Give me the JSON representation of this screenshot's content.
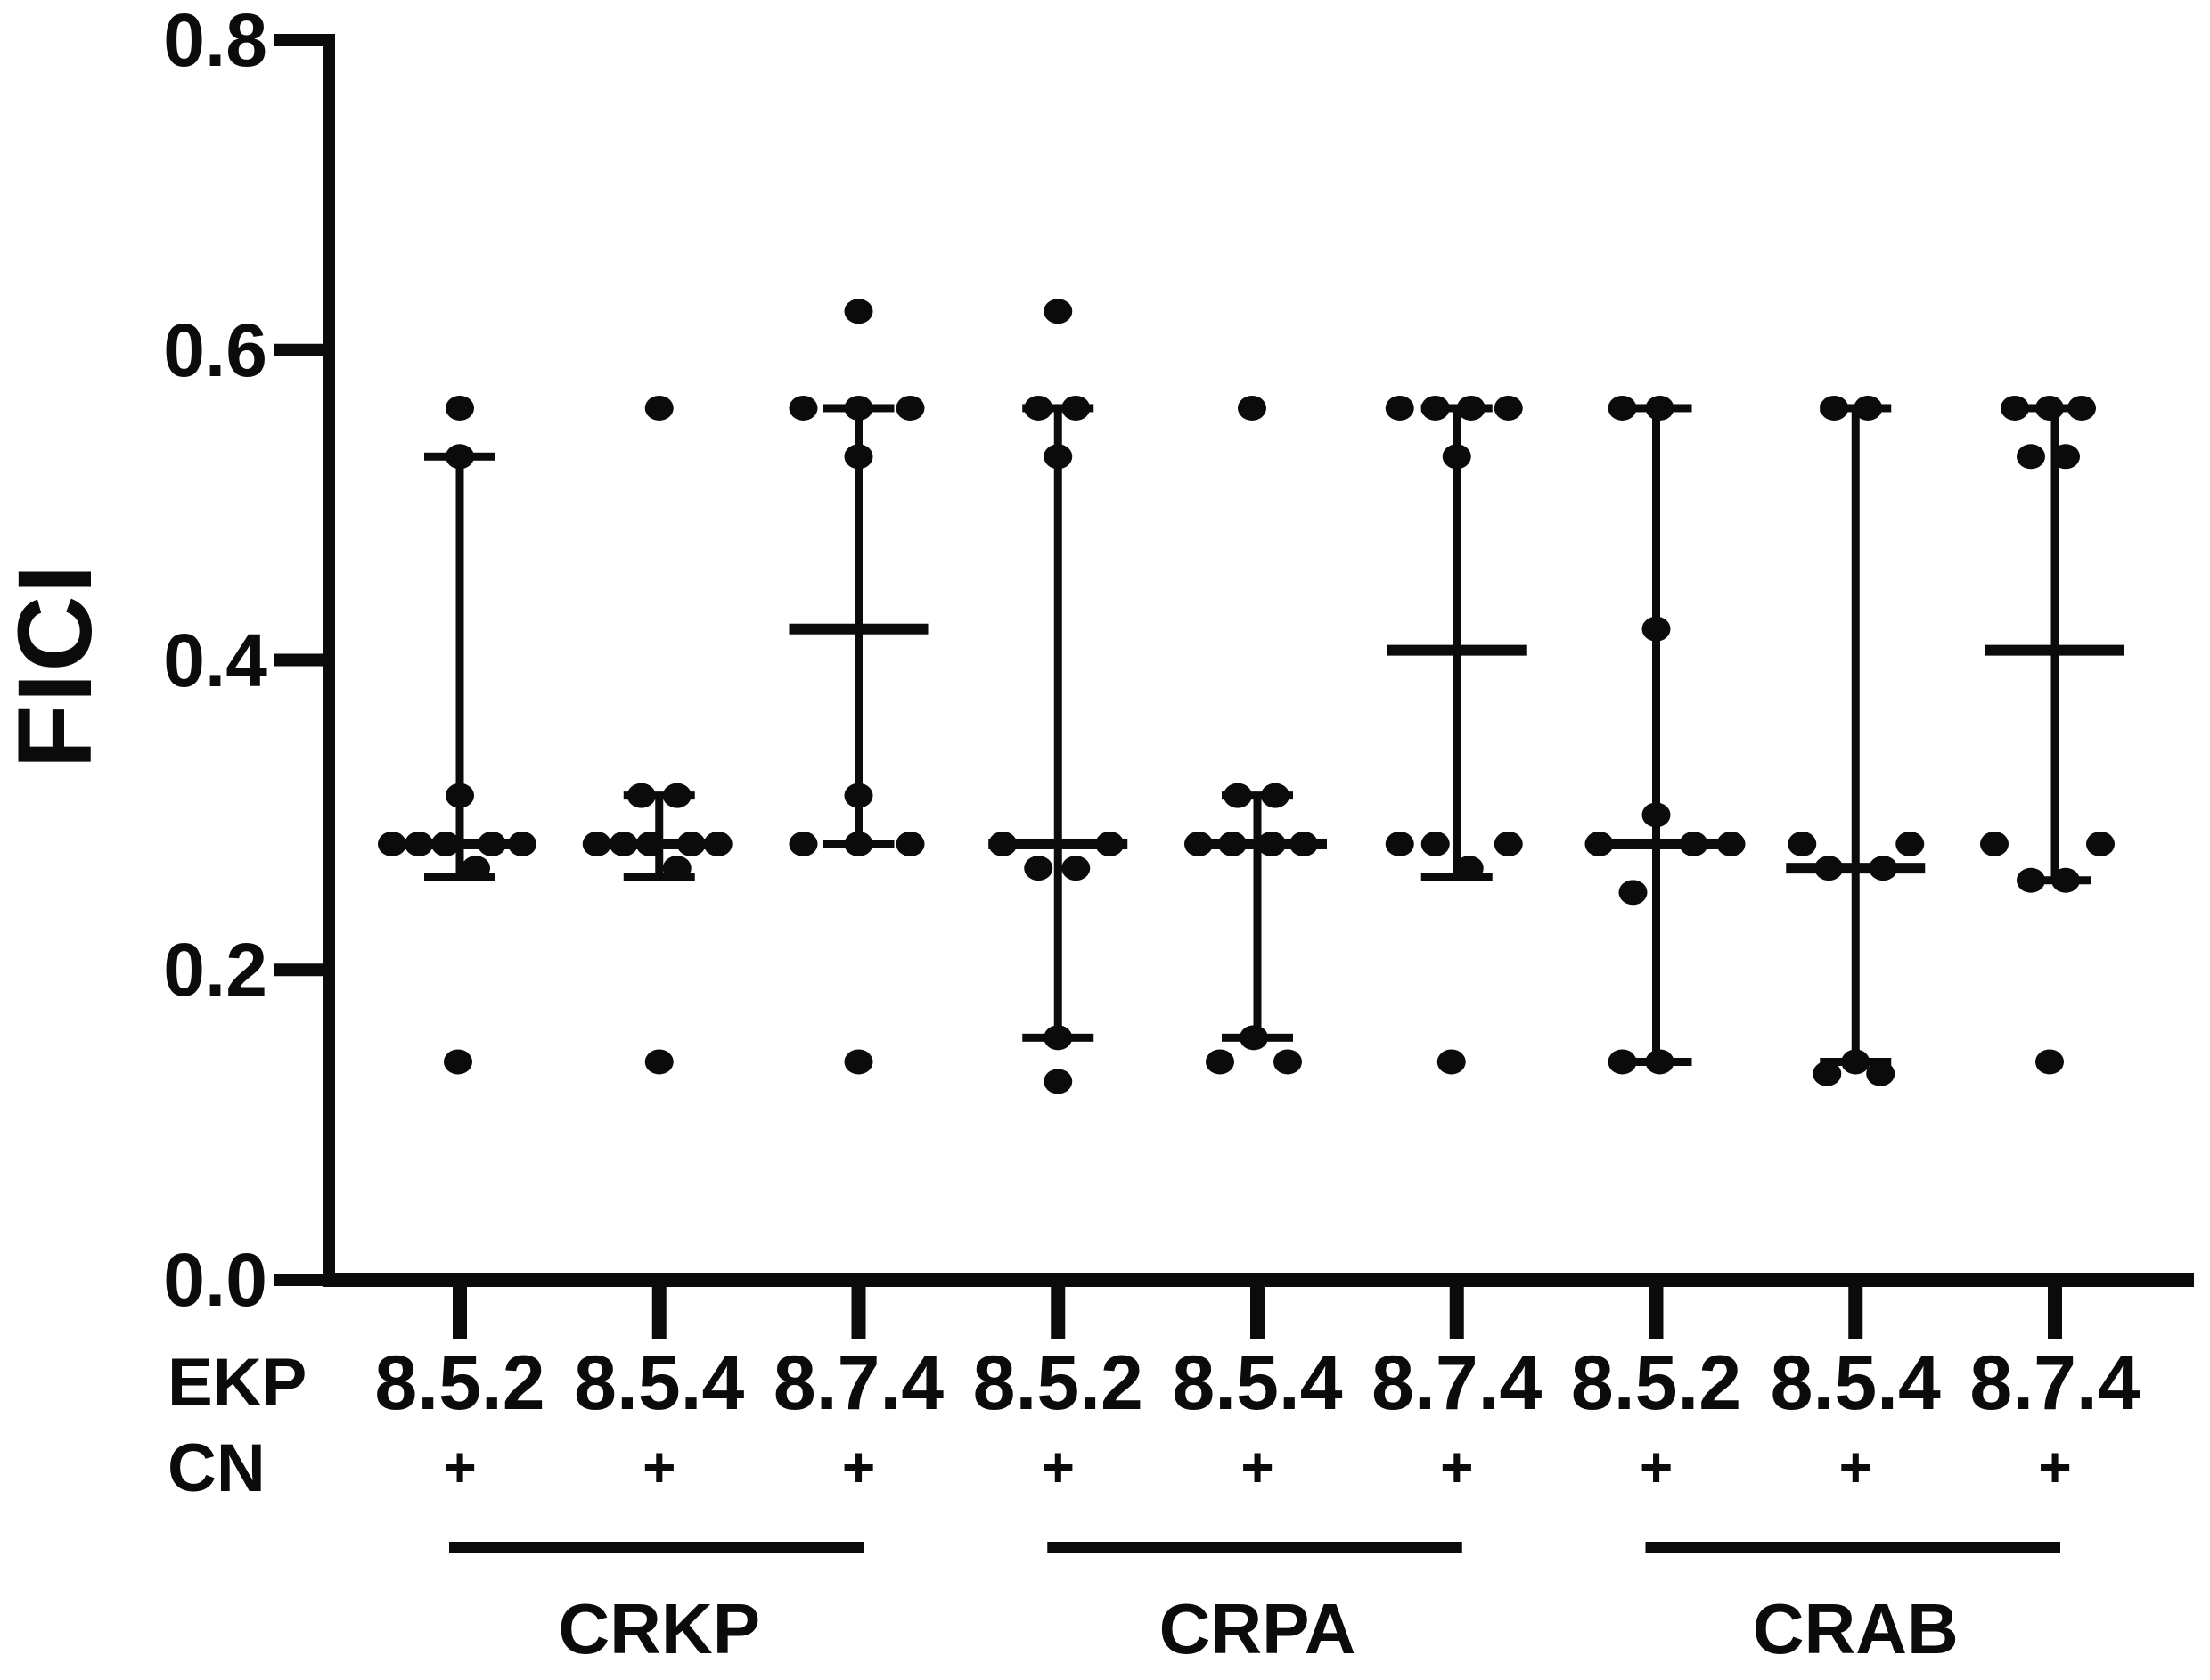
{
  "figure": {
    "background": "#ffffff",
    "ink_color": "#0b0b0b"
  },
  "chart_data": {
    "type": "scatter",
    "title": "",
    "ylabel": "FICI",
    "xlabel": "",
    "ylim": [
      0,
      0.8
    ],
    "yticks": [
      0.8,
      0.6,
      0.4,
      0.2,
      0.0
    ],
    "ytick_labels": [
      "0.8",
      "0.6",
      "0.4",
      "0.2",
      "0.0"
    ],
    "grid": "off",
    "legend": "none",
    "marker": "filled-black-dot",
    "summary_style": "median-with-range-whiskers",
    "row_labels": {
      "ekp": "EKP",
      "cn": "CN"
    },
    "groups": [
      {
        "name": "CRKP",
        "first_col": 0,
        "last_col": 2
      },
      {
        "name": "CRPA",
        "first_col": 3,
        "last_col": 5
      },
      {
        "name": "CRAB",
        "first_col": 6,
        "last_col": 8
      }
    ],
    "columns": [
      {
        "group": "CRKP",
        "ekp": "8.5.2",
        "cn": "+",
        "median": 0.28125,
        "whisker_lo": 0.26,
        "whisker_hi": 0.53125,
        "points": [
          [
            0.5625,
            0
          ],
          [
            0.53125,
            0
          ],
          [
            0.3125,
            0
          ],
          [
            0.28125,
            -76
          ],
          [
            0.28125,
            -46
          ],
          [
            0.28125,
            -16
          ],
          [
            0.28125,
            36
          ],
          [
            0.28125,
            70
          ],
          [
            0.265625,
            18
          ],
          [
            0.140625,
            -2
          ]
        ]
      },
      {
        "group": "CRKP",
        "ekp": "8.5.4",
        "cn": "+",
        "median": 0.28125,
        "whisker_lo": 0.26,
        "whisker_hi": 0.3125,
        "points": [
          [
            0.5625,
            0
          ],
          [
            0.3125,
            -20
          ],
          [
            0.3125,
            20
          ],
          [
            0.28125,
            -70
          ],
          [
            0.28125,
            -40
          ],
          [
            0.28125,
            -10
          ],
          [
            0.28125,
            36
          ],
          [
            0.28125,
            66
          ],
          [
            0.265625,
            20
          ],
          [
            0.140625,
            0
          ]
        ]
      },
      {
        "group": "CRKP",
        "ekp": "8.7.4",
        "cn": "+",
        "median": 0.42,
        "whisker_lo": 0.28125,
        "whisker_hi": 0.5625,
        "points": [
          [
            0.625,
            0
          ],
          [
            0.5625,
            -62
          ],
          [
            0.5625,
            0
          ],
          [
            0.5625,
            58
          ],
          [
            0.53125,
            0
          ],
          [
            0.3125,
            0
          ],
          [
            0.28125,
            -62
          ],
          [
            0.28125,
            0
          ],
          [
            0.28125,
            58
          ],
          [
            0.140625,
            0
          ]
        ]
      },
      {
        "group": "CRPA",
        "ekp": "8.5.2",
        "cn": "+",
        "median": 0.28125,
        "whisker_lo": 0.15625,
        "whisker_hi": 0.5625,
        "points": [
          [
            0.625,
            0
          ],
          [
            0.5625,
            -22
          ],
          [
            0.5625,
            20
          ],
          [
            0.53125,
            0
          ],
          [
            0.28125,
            -62
          ],
          [
            0.28125,
            58
          ],
          [
            0.265625,
            -22
          ],
          [
            0.265625,
            20
          ],
          [
            0.15625,
            0
          ],
          [
            0.128,
            0
          ]
        ]
      },
      {
        "group": "CRPA",
        "ekp": "8.5.4",
        "cn": "+",
        "median": 0.28125,
        "whisker_lo": 0.15625,
        "whisker_hi": 0.3125,
        "points": [
          [
            0.5625,
            -6
          ],
          [
            0.3125,
            -22
          ],
          [
            0.3125,
            20
          ],
          [
            0.28125,
            -66
          ],
          [
            0.28125,
            -28
          ],
          [
            0.28125,
            16
          ],
          [
            0.28125,
            52
          ],
          [
            0.15625,
            -4
          ],
          [
            0.140625,
            -42
          ],
          [
            0.140625,
            34
          ]
        ]
      },
      {
        "group": "CRPA",
        "ekp": "8.7.4",
        "cn": "+",
        "median": 0.40625,
        "whisker_lo": 0.26,
        "whisker_hi": 0.5625,
        "points": [
          [
            0.5625,
            -64
          ],
          [
            0.5625,
            -24
          ],
          [
            0.5625,
            16
          ],
          [
            0.5625,
            58
          ],
          [
            0.53125,
            0
          ],
          [
            0.28125,
            -64
          ],
          [
            0.28125,
            -24
          ],
          [
            0.28125,
            58
          ],
          [
            0.265625,
            14
          ],
          [
            0.140625,
            -6
          ]
        ]
      },
      {
        "group": "CRAB",
        "ekp": "8.5.2",
        "cn": "+",
        "median": 0.28125,
        "whisker_lo": 0.140625,
        "whisker_hi": 0.5625,
        "points": [
          [
            0.5625,
            -38
          ],
          [
            0.5625,
            4
          ],
          [
            0.42,
            0
          ],
          [
            0.3,
            0
          ],
          [
            0.28125,
            -64
          ],
          [
            0.28125,
            42
          ],
          [
            0.28125,
            84
          ],
          [
            0.25,
            -26
          ],
          [
            0.140625,
            -38
          ],
          [
            0.140625,
            4
          ]
        ]
      },
      {
        "group": "CRAB",
        "ekp": "8.5.4",
        "cn": "+",
        "median": 0.265625,
        "whisker_lo": 0.140625,
        "whisker_hi": 0.5625,
        "points": [
          [
            0.5625,
            -24
          ],
          [
            0.5625,
            14
          ],
          [
            0.28125,
            -60
          ],
          [
            0.28125,
            61
          ],
          [
            0.265625,
            -30
          ],
          [
            0.265625,
            31
          ],
          [
            0.140625,
            0
          ],
          [
            0.133,
            -32
          ],
          [
            0.133,
            28
          ]
        ]
      },
      {
        "group": "CRAB",
        "ekp": "8.7.4",
        "cn": "+",
        "median": 0.40625,
        "whisker_lo": 0.2578,
        "whisker_hi": 0.5625,
        "points": [
          [
            0.5625,
            -45
          ],
          [
            0.5625,
            -6
          ],
          [
            0.5625,
            30
          ],
          [
            0.53125,
            -27
          ],
          [
            0.53125,
            12
          ],
          [
            0.28125,
            -68
          ],
          [
            0.28125,
            51
          ],
          [
            0.2578,
            -27
          ],
          [
            0.2578,
            12
          ],
          [
            0.140625,
            -6
          ]
        ]
      }
    ]
  }
}
